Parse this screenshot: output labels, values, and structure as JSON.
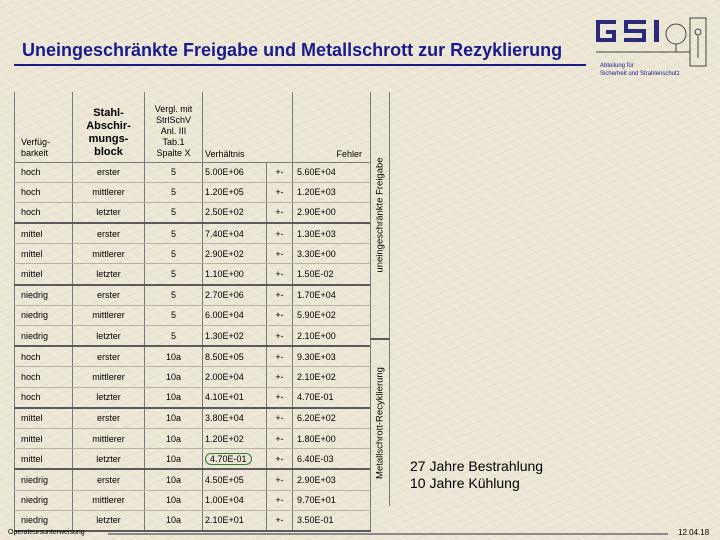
{
  "title": "Uneingeschränkte Freigabe und Metallschrott zur Rezyklierung",
  "logo_text": "GSI",
  "department": [
    "Abteilung für",
    "Sicherheit und Strahlenschutz"
  ],
  "columns": {
    "verfuegbarkeit": "Verfüg-\nbarkeit",
    "block": "Stahl-\nAbschir-\nmungs-\nblock",
    "vergl": "Vergl. mit\nStrlSchV\nAnl. III\nTab.1\nSpalte X",
    "verhaeltnis": "Verhältnis",
    "fehler": "Fehler"
  },
  "rows": [
    {
      "verf": "hoch",
      "block": "erster",
      "vergl": "5",
      "verh": "5.00E+06",
      "pm": "+-",
      "fehler": "5.60E+04"
    },
    {
      "verf": "hoch",
      "block": "mittlerer",
      "vergl": "5",
      "verh": "1.20E+05",
      "pm": "+-",
      "fehler": "1.20E+03"
    },
    {
      "verf": "hoch",
      "block": "letzter",
      "vergl": "5",
      "verh": "2.50E+02",
      "pm": "+-",
      "fehler": "2.90E+00"
    },
    {
      "verf": "mittel",
      "block": "erster",
      "vergl": "5",
      "verh": "7.40E+04",
      "pm": "+-",
      "fehler": "1.30E+03"
    },
    {
      "verf": "mittel",
      "block": "mittlerer",
      "vergl": "5",
      "verh": "2.90E+02",
      "pm": "+-",
      "fehler": "3.30E+00"
    },
    {
      "verf": "mittel",
      "block": "letzter",
      "vergl": "5",
      "verh": "1.10E+00",
      "pm": "+-",
      "fehler": "1.50E-02"
    },
    {
      "verf": "niedrig",
      "block": "erster",
      "vergl": "5",
      "verh": "2.70E+06",
      "pm": "+-",
      "fehler": "1.70E+04"
    },
    {
      "verf": "niedrig",
      "block": "mittlerer",
      "vergl": "5",
      "verh": "6.00E+04",
      "pm": "+-",
      "fehler": "5.90E+02"
    },
    {
      "verf": "niedrig",
      "block": "letzter",
      "vergl": "5",
      "verh": "1.30E+02",
      "pm": "+-",
      "fehler": "2.10E+00"
    },
    {
      "verf": "hoch",
      "block": "erster",
      "vergl": "10a",
      "verh": "8.50E+05",
      "pm": "+-",
      "fehler": "9.30E+03"
    },
    {
      "verf": "hoch",
      "block": "mittlerer",
      "vergl": "10a",
      "verh": "2.00E+04",
      "pm": "+-",
      "fehler": "2.10E+02"
    },
    {
      "verf": "hoch",
      "block": "letzter",
      "vergl": "10a",
      "verh": "4.10E+01",
      "pm": "+-",
      "fehler": "4.70E-01"
    },
    {
      "verf": "mittel",
      "block": "erster",
      "vergl": "10a",
      "verh": "3.80E+04",
      "pm": "+-",
      "fehler": "6.20E+02"
    },
    {
      "verf": "mittel",
      "block": "mittlerer",
      "vergl": "10a",
      "verh": "1.20E+02",
      "pm": "+-",
      "fehler": "1.80E+00"
    },
    {
      "verf": "mittel",
      "block": "letzter",
      "vergl": "10a",
      "verh": "4.70E-01",
      "pm": "+-",
      "fehler": "6.40E-03",
      "highlight": true
    },
    {
      "verf": "niedrig",
      "block": "erster",
      "vergl": "10a",
      "verh": "4.50E+05",
      "pm": "+-",
      "fehler": "2.90E+03"
    },
    {
      "verf": "niedrig",
      "block": "mittlerer",
      "vergl": "10a",
      "verh": "1.00E+04",
      "pm": "+-",
      "fehler": "9.70E+01"
    },
    {
      "verf": "niedrig",
      "block": "letzter",
      "vergl": "10a",
      "verh": "2.10E+01",
      "pm": "+-",
      "fehler": "3.50E-01"
    }
  ],
  "side_labels": {
    "top": "uneingeschränkte Freigabe",
    "bottom": "Metallschrott-Recyklierung"
  },
  "note": [
    "27 Jahre Bestrahlung",
    "10 Jahre Kühlung"
  ],
  "footer": {
    "left": "Operateursunterweisung",
    "right": "12.04.18"
  },
  "colors": {
    "title": "#1a1a8c",
    "background": "#ece6d5",
    "highlight_circle": "#2e7d32"
  }
}
